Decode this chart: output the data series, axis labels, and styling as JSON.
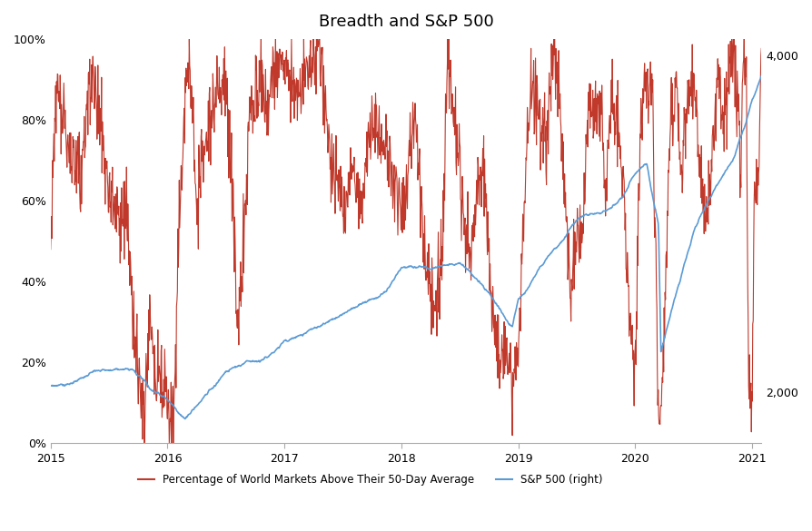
{
  "title": "Breadth and S&P 500",
  "title_fontsize": 13,
  "left_ylabel": "",
  "right_ylabel": "",
  "background_color": "#ffffff",
  "red_color": "#C0392B",
  "blue_color": "#5B9BD5",
  "left_ylim": [
    0,
    1.0
  ],
  "right_ylim": [
    1700,
    4100
  ],
  "left_yticks": [
    0,
    0.2,
    0.4,
    0.6,
    0.8,
    1.0
  ],
  "right_yticks": [
    2000,
    4000
  ],
  "right_ytick_labels": [
    "2,000",
    "4,000"
  ],
  "xlim_start": 2015.0,
  "xlim_end": 2021.08,
  "xtick_years": [
    2015,
    2016,
    2017,
    2018,
    2019,
    2020,
    2021
  ],
  "legend_items": [
    {
      "label": "Percentage of World Markets Above Their 50-Day Average",
      "color": "#C0392B"
    },
    {
      "label": "S&P 500 (right)",
      "color": "#5B9BD5"
    }
  ]
}
